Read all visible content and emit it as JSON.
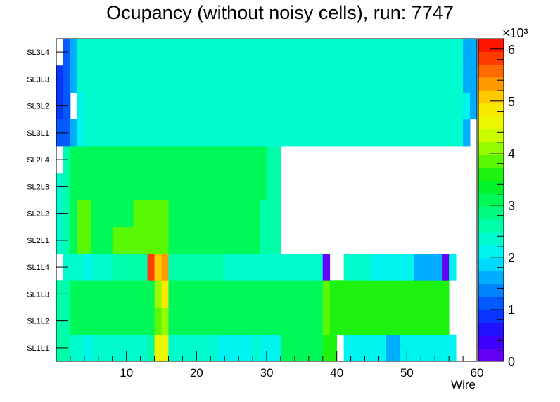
{
  "chart_data": {
    "type": "heatmap",
    "title": "Ocupancy (without noisy cells), run: 7747",
    "xlabel": "Wire",
    "ylabel": "",
    "x_ticks": [
      "10",
      "20",
      "30",
      "40",
      "50",
      "60"
    ],
    "xlim": [
      0,
      60
    ],
    "layers": [
      "SL1L1",
      "SL1L2",
      "SL1L3",
      "SL1L4",
      "SL2L1",
      "SL2L2",
      "SL2L3",
      "SL2L4",
      "SL3L1",
      "SL3L2",
      "SL3L3",
      "SL3L4"
    ],
    "z_ticks": [
      "0",
      "1",
      "2",
      "3",
      "4",
      "5",
      "6"
    ],
    "z_multiplier": "×10³",
    "zlim": [
      0,
      6200
    ],
    "grid": false,
    "rows": {
      "SL3L4": [
        null,
        1100,
        1700,
        2300,
        2300,
        2300,
        2300,
        2300,
        2300,
        2300,
        2300,
        2300,
        2300,
        2300,
        2300,
        2300,
        2300,
        2300,
        2300,
        2300,
        2300,
        2300,
        2300,
        2300,
        2300,
        2300,
        2300,
        2300,
        2300,
        2300,
        2300,
        2300,
        2300,
        2300,
        2300,
        2300,
        2300,
        2300,
        2300,
        2300,
        2300,
        2300,
        2300,
        2300,
        2300,
        2300,
        2300,
        2300,
        2300,
        2300,
        2300,
        2300,
        2300,
        2300,
        2300,
        2300,
        2300,
        2300,
        1500,
        1700
      ],
      "SL3L3": [
        900,
        1100,
        1700,
        2300,
        2300,
        2300,
        2300,
        2300,
        2300,
        2300,
        2300,
        2300,
        2300,
        2300,
        2300,
        2300,
        2300,
        2300,
        2300,
        2300,
        2300,
        2300,
        2300,
        2300,
        2300,
        2300,
        2300,
        2300,
        2300,
        2300,
        2300,
        2300,
        2300,
        2300,
        2300,
        2300,
        2300,
        2300,
        2300,
        2300,
        2300,
        2300,
        2300,
        2300,
        2300,
        2300,
        2300,
        2300,
        2300,
        2300,
        2300,
        2300,
        2300,
        2300,
        2300,
        2300,
        2300,
        2300,
        1700,
        1700
      ],
      "SL3L2": [
        900,
        1100,
        null,
        2000,
        2300,
        2300,
        2300,
        2300,
        2300,
        2300,
        2300,
        2300,
        2300,
        2300,
        2300,
        2300,
        2300,
        2300,
        2300,
        2300,
        2300,
        2300,
        2300,
        2300,
        2300,
        2300,
        2300,
        2300,
        2300,
        2300,
        2300,
        2300,
        2300,
        2300,
        2300,
        2300,
        2300,
        2300,
        2300,
        2300,
        2300,
        2300,
        2300,
        2300,
        2300,
        2300,
        2300,
        2300,
        2300,
        2300,
        2300,
        2300,
        2300,
        2300,
        2300,
        2300,
        2300,
        2300,
        2200,
        1500
      ],
      "SL3L1": [
        1100,
        1100,
        1700,
        2000,
        2300,
        2300,
        2300,
        2300,
        2300,
        2300,
        2300,
        2300,
        2300,
        2300,
        2300,
        2300,
        2300,
        2300,
        2300,
        2300,
        2300,
        2300,
        2300,
        2300,
        2300,
        2300,
        2300,
        2300,
        2300,
        2300,
        2300,
        2300,
        2300,
        2300,
        2300,
        2300,
        2300,
        2300,
        2300,
        2300,
        2300,
        2300,
        2300,
        2300,
        2300,
        2300,
        2300,
        2300,
        2300,
        2300,
        2300,
        2300,
        2300,
        2300,
        2300,
        2300,
        2300,
        2300,
        1700,
        null
      ],
      "SL2L4": [
        null,
        2600,
        3200,
        3200,
        3200,
        3200,
        3200,
        3200,
        3200,
        3200,
        3200,
        3200,
        3200,
        3200,
        3200,
        3200,
        3200,
        3200,
        3200,
        3200,
        3200,
        3200,
        3200,
        3200,
        3200,
        3200,
        3200,
        3200,
        3200,
        3200,
        2600,
        2600,
        null,
        null,
        null,
        null,
        null,
        null,
        null,
        null,
        null,
        null,
        null,
        null,
        null,
        null,
        null,
        null,
        null,
        null,
        null,
        null,
        null,
        null,
        null,
        null,
        null,
        null,
        null,
        null
      ],
      "SL2L3": [
        2300,
        2600,
        3200,
        3200,
        3200,
        3200,
        3200,
        3200,
        3200,
        3200,
        3200,
        3200,
        3200,
        3200,
        3200,
        3200,
        3200,
        3200,
        3200,
        3200,
        3200,
        3200,
        3200,
        3200,
        3200,
        3200,
        3200,
        3200,
        3200,
        3200,
        2600,
        2600,
        null,
        null,
        null,
        null,
        null,
        null,
        null,
        null,
        null,
        null,
        null,
        null,
        null,
        null,
        null,
        null,
        null,
        null,
        null,
        null,
        null,
        null,
        null,
        null,
        null,
        null,
        null,
        null
      ],
      "SL2L2": [
        2300,
        2600,
        3200,
        3800,
        3800,
        3200,
        3200,
        3200,
        3200,
        3200,
        3200,
        3800,
        3800,
        3800,
        3800,
        3800,
        3200,
        3200,
        3200,
        3200,
        3200,
        3200,
        3200,
        3200,
        3200,
        3200,
        3200,
        3200,
        3200,
        2600,
        2600,
        2600,
        null,
        null,
        null,
        null,
        null,
        null,
        null,
        null,
        null,
        null,
        null,
        null,
        null,
        null,
        null,
        null,
        null,
        null,
        null,
        null,
        null,
        null,
        null,
        null,
        null,
        null,
        null,
        null
      ],
      "SL2L1": [
        2300,
        2600,
        3200,
        3800,
        3800,
        3200,
        3200,
        3200,
        3800,
        3800,
        3800,
        3800,
        3800,
        3800,
        3800,
        3800,
        3200,
        3200,
        3200,
        3200,
        3200,
        3200,
        3200,
        3200,
        3200,
        3200,
        3200,
        3200,
        3200,
        2600,
        2600,
        2600,
        null,
        null,
        null,
        null,
        null,
        null,
        null,
        null,
        null,
        null,
        null,
        null,
        null,
        null,
        null,
        null,
        null,
        null,
        null,
        null,
        null,
        null,
        null,
        null,
        null,
        null,
        null,
        null
      ],
      "SL1L4": [
        null,
        2300,
        2300,
        2300,
        2000,
        2300,
        2300,
        2300,
        2600,
        2600,
        2600,
        2600,
        2600,
        5800,
        5000,
        5300,
        2600,
        2600,
        2600,
        2600,
        2600,
        2600,
        2600,
        2600,
        2300,
        2300,
        2300,
        2300,
        2300,
        2300,
        2300,
        2300,
        2300,
        2300,
        2300,
        2300,
        2300,
        2300,
        200,
        null,
        null,
        2300,
        2300,
        2300,
        2300,
        2000,
        2000,
        2000,
        2000,
        2000,
        2000,
        1500,
        1500,
        1500,
        1500,
        200,
        2000,
        null,
        null,
        null
      ],
      "SL1L3": [
        2600,
        2600,
        3200,
        3200,
        3200,
        3200,
        3200,
        3200,
        3200,
        3200,
        3200,
        3200,
        3200,
        3200,
        4100,
        4800,
        3200,
        3200,
        3200,
        3200,
        3200,
        3200,
        3200,
        3200,
        3200,
        3200,
        3200,
        3200,
        3200,
        3200,
        3200,
        3200,
        3200,
        3200,
        3200,
        3200,
        3200,
        3200,
        3800,
        3500,
        3500,
        3500,
        3500,
        3500,
        3500,
        3500,
        3500,
        3500,
        3500,
        3500,
        3500,
        3500,
        3500,
        3500,
        3500,
        3500,
        null,
        null,
        null,
        null
      ],
      "SL1L2": [
        2600,
        2600,
        3200,
        3200,
        3200,
        3200,
        3200,
        3200,
        3200,
        3200,
        3200,
        3200,
        3200,
        3200,
        3800,
        4100,
        3200,
        3200,
        3200,
        3200,
        3200,
        3200,
        3200,
        3200,
        3200,
        3200,
        3200,
        3200,
        3200,
        3200,
        3200,
        3200,
        3200,
        3200,
        3200,
        3200,
        3200,
        3200,
        3800,
        3500,
        3500,
        3500,
        3500,
        3500,
        3500,
        3500,
        3500,
        3500,
        3500,
        3500,
        3500,
        3500,
        3500,
        3500,
        3500,
        3500,
        null,
        null,
        null,
        null
      ],
      "SL1L1": [
        2600,
        2600,
        2300,
        2300,
        2000,
        2300,
        2300,
        2300,
        2300,
        2300,
        2300,
        2300,
        2300,
        2600,
        4700,
        4700,
        2300,
        2300,
        2300,
        2300,
        2300,
        2300,
        2300,
        2000,
        2000,
        2000,
        2000,
        2000,
        2300,
        2000,
        2000,
        2000,
        3200,
        3200,
        3200,
        3200,
        3200,
        3200,
        3500,
        3500,
        null,
        2000,
        2000,
        2000,
        2000,
        2000,
        2000,
        1700,
        1700,
        2000,
        2000,
        2000,
        2000,
        2000,
        2000,
        2000,
        2000,
        null,
        null,
        null
      ]
    }
  }
}
